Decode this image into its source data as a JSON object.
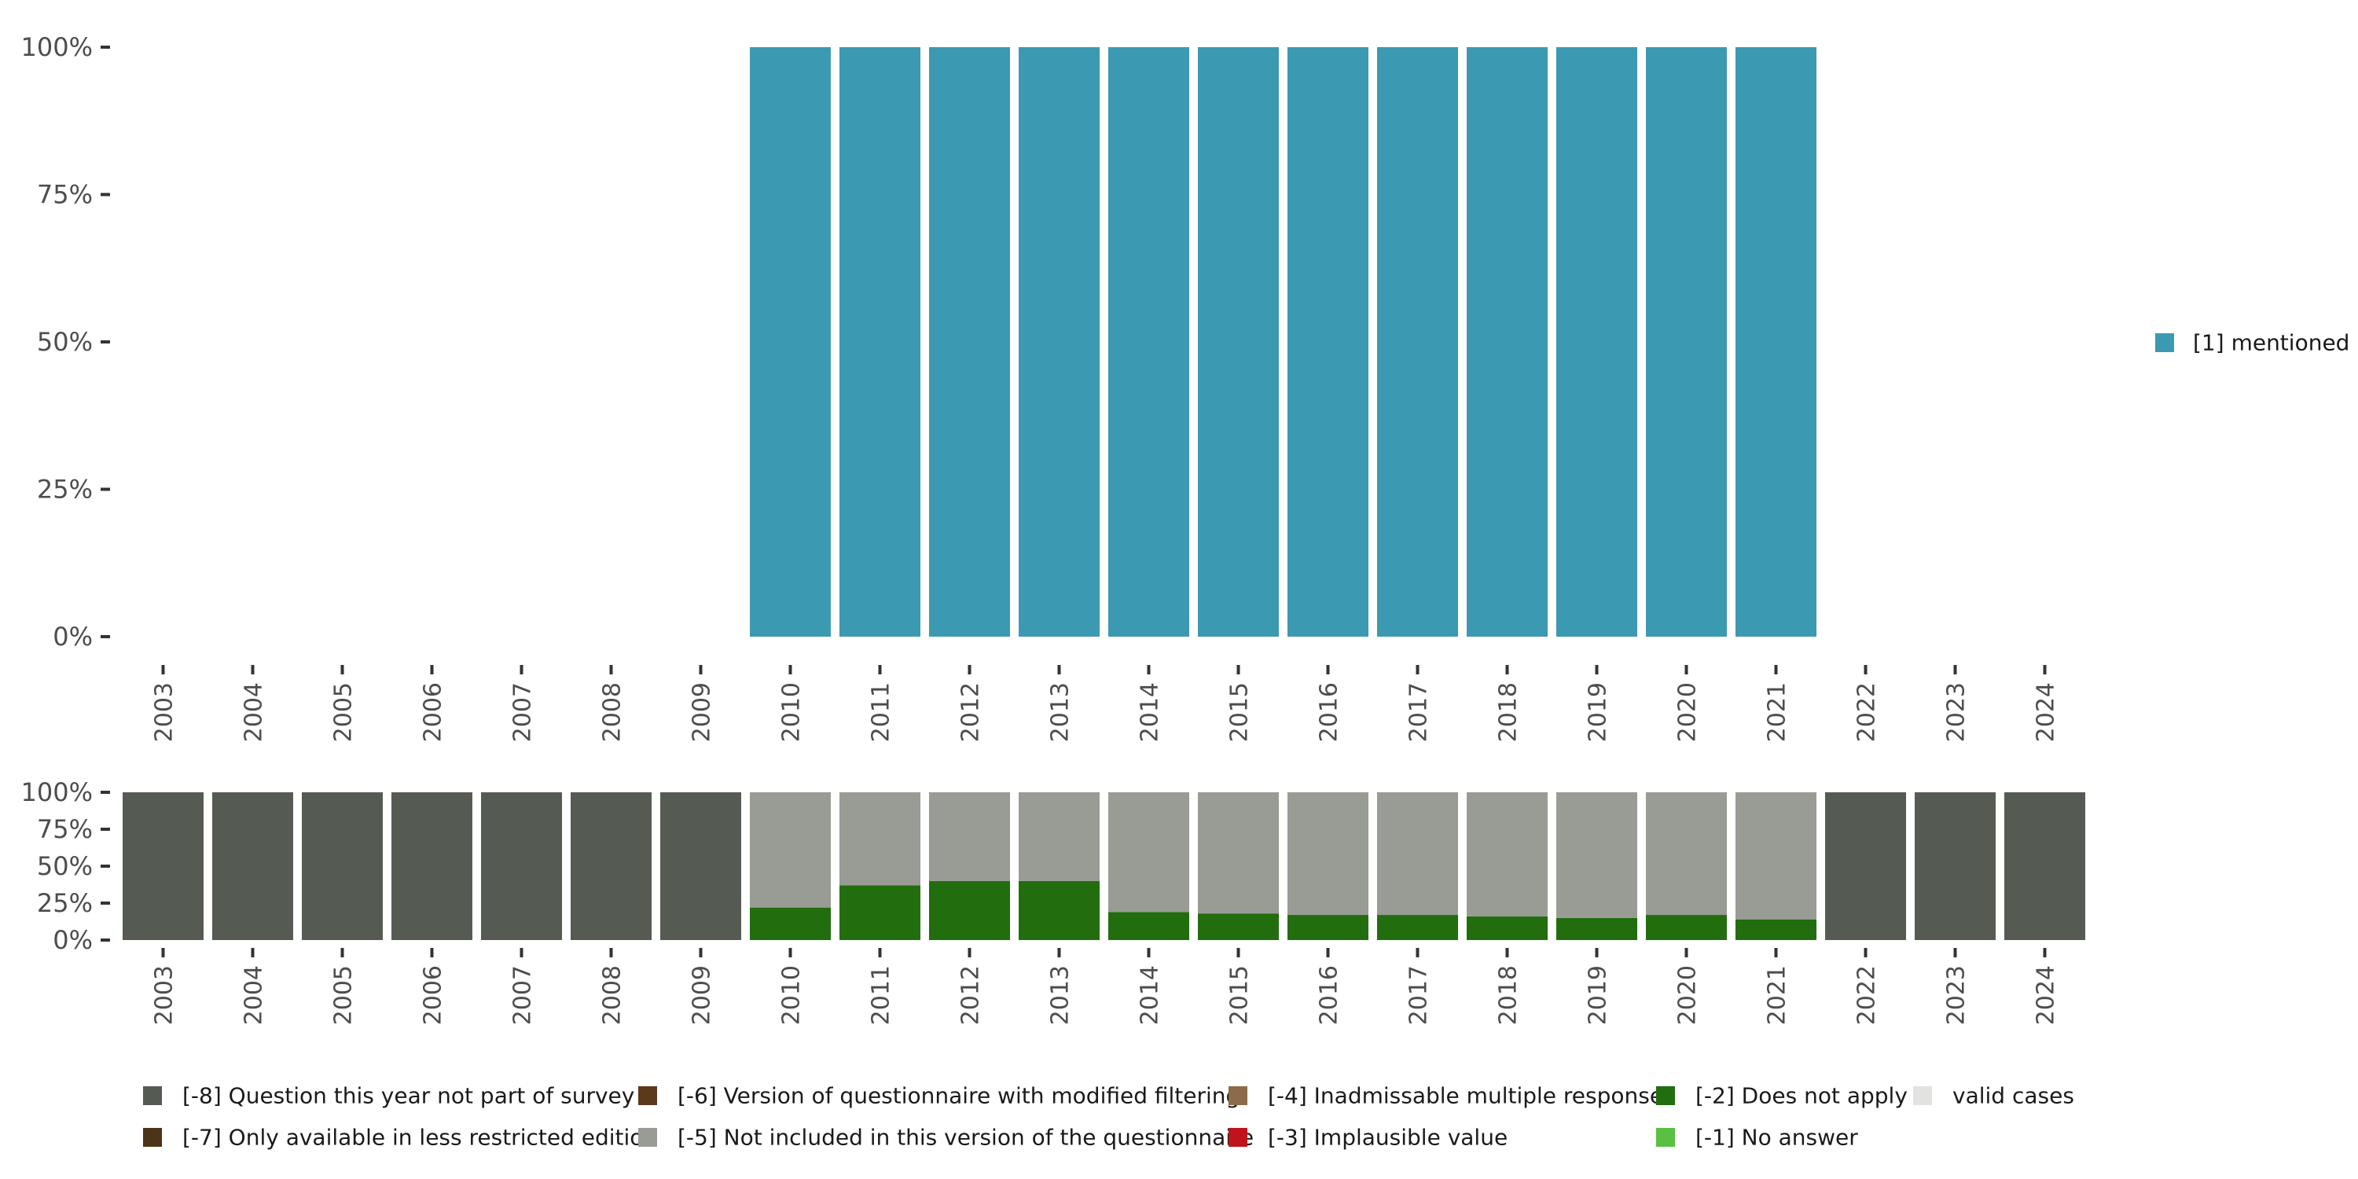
{
  "chart_data": [
    {
      "type": "bar",
      "name": "valid-responses",
      "categories": [
        "2003",
        "2004",
        "2005",
        "2006",
        "2007",
        "2008",
        "2009",
        "2010",
        "2011",
        "2012",
        "2013",
        "2014",
        "2015",
        "2016",
        "2017",
        "2018",
        "2019",
        "2020",
        "2021",
        "2022",
        "2023",
        "2024"
      ],
      "series": [
        {
          "name": "[1] mentioned",
          "color": "#3c99b2",
          "values": [
            null,
            null,
            null,
            null,
            null,
            null,
            null,
            100,
            100,
            100,
            100,
            100,
            100,
            100,
            100,
            100,
            100,
            100,
            100,
            null,
            null,
            null
          ]
        }
      ],
      "y_ticks": [
        "0%",
        "25%",
        "50%",
        "75%",
        "100%"
      ],
      "ylim": [
        0,
        100
      ],
      "legend": [
        {
          "label": "[1] mentioned",
          "color": "#3c99b2"
        }
      ],
      "legend_position": "right"
    },
    {
      "type": "bar",
      "name": "missing-overview",
      "stacked": true,
      "categories": [
        "2003",
        "2004",
        "2005",
        "2006",
        "2007",
        "2008",
        "2009",
        "2010",
        "2011",
        "2012",
        "2013",
        "2014",
        "2015",
        "2016",
        "2017",
        "2018",
        "2019",
        "2020",
        "2021",
        "2022",
        "2023",
        "2024"
      ],
      "series": [
        {
          "name": "[-2] Does not apply",
          "color": "#226d0e",
          "values": [
            0,
            0,
            0,
            0,
            0,
            0,
            0,
            22,
            37,
            40,
            40,
            19,
            18,
            17,
            17,
            16,
            15,
            17,
            14,
            0,
            0,
            0
          ]
        },
        {
          "name": "[-5] Not included in this version of the questionnaire",
          "color": "#989c94",
          "values": [
            0,
            0,
            0,
            0,
            0,
            0,
            0,
            78,
            63,
            60,
            60,
            81,
            82,
            83,
            83,
            84,
            85,
            83,
            86,
            0,
            0,
            0
          ]
        },
        {
          "name": "[-8] Question this year not part of survey",
          "color": "#555b53",
          "values": [
            100,
            100,
            100,
            100,
            100,
            100,
            100,
            0,
            0,
            0,
            0,
            0,
            0,
            0,
            0,
            0,
            0,
            0,
            0,
            100,
            100,
            100
          ]
        }
      ],
      "y_ticks": [
        "0%",
        "25%",
        "50%",
        "75%",
        "100%"
      ],
      "ylim": [
        0,
        100
      ],
      "legend_position": "bottom"
    }
  ],
  "legend_bottom": [
    {
      "label": "[-8] Question this year not part of survey",
      "color": "#555b53"
    },
    {
      "label": "[-7] Only available in less restricted edition",
      "color": "#4c3418"
    },
    {
      "label": "[-6] Version of questionnaire with modified filtering",
      "color": "#5a3a1a"
    },
    {
      "label": "[-5] Not included in this version of the questionnaire",
      "color": "#989c94"
    },
    {
      "label": "[-4] Inadmissable multiple response",
      "color": "#8d6b4a"
    },
    {
      "label": "[-3] Implausible value",
      "color": "#c0141c"
    },
    {
      "label": "[-2] Does not apply",
      "color": "#226d0e"
    },
    {
      "label": "[-1] No answer",
      "color": "#58c043"
    },
    {
      "label": "valid cases",
      "color": "#e2e3e0"
    }
  ]
}
